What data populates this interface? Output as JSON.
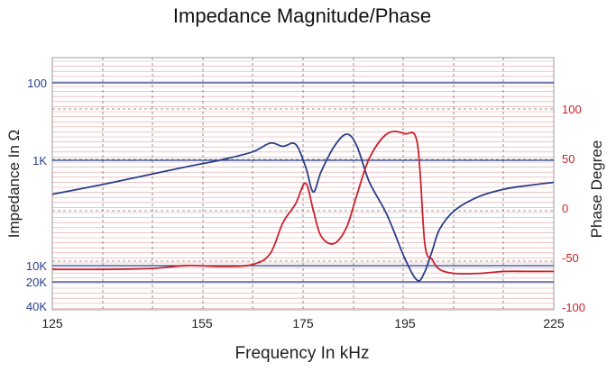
{
  "chart_data": {
    "type": "line",
    "title": "Impedance Magnitude/Phase",
    "xlabel": "Frequency In kHz",
    "ylabel_left": "Impedance In Ω",
    "ylabel_right": "Phase Degree",
    "xlim": [
      125,
      225
    ],
    "x_ticks": [
      "125",
      "155",
      "175",
      "195",
      "225"
    ],
    "left_y_ticks": [
      "100",
      "1K",
      "10K",
      "20K",
      "40K"
    ],
    "right_y_ticks": [
      "100",
      "50",
      "0",
      "-50",
      "-100"
    ],
    "right_ylim": [
      -100,
      100
    ],
    "grid": true,
    "colors": {
      "impedance": "#2a3f8a",
      "phase": "#c8222e",
      "left_axis_text": "#2a3f8a",
      "right_axis_text": "#c8222e",
      "minor_grid": "#e6a0a0",
      "major_grid": "#2a3f8a",
      "frame": "#999999"
    },
    "series": [
      {
        "key": "impedance",
        "axis": "left",
        "x": [
          125,
          135,
          145,
          152,
          159,
          165,
          168.5,
          171,
          173.5,
          175.5,
          177,
          178.5,
          181,
          183.5,
          185.5,
          188,
          191.5,
          195,
          197.5,
          199,
          200.5,
          202,
          205,
          210,
          215,
          220,
          225
        ],
        "values": [
          2100,
          1700,
          1350,
          1150,
          980,
          780,
          600,
          660,
          620,
          1150,
          2000,
          1300,
          680,
          460,
          640,
          1600,
          3300,
          8600,
          18800,
          13000,
          7200,
          4500,
          3000,
          2200,
          1880,
          1730,
          1620
        ]
      },
      {
        "key": "phase",
        "axis": "right",
        "x": [
          125,
          135,
          145,
          152,
          159,
          165,
          168.5,
          171,
          173.5,
          175.5,
          177,
          178.5,
          181,
          183.5,
          185.5,
          188,
          191.5,
          195,
          197.5,
          199,
          200.5,
          202,
          205,
          210,
          215,
          220,
          225
        ],
        "values": [
          -62,
          -62,
          -61,
          -58,
          -59,
          -57,
          -46,
          -15,
          4,
          25,
          -2,
          -28,
          -36,
          -20,
          12,
          50,
          75,
          75,
          65,
          -36,
          -52,
          -62,
          -66,
          -66,
          -64,
          -64,
          -64
        ]
      }
    ]
  }
}
